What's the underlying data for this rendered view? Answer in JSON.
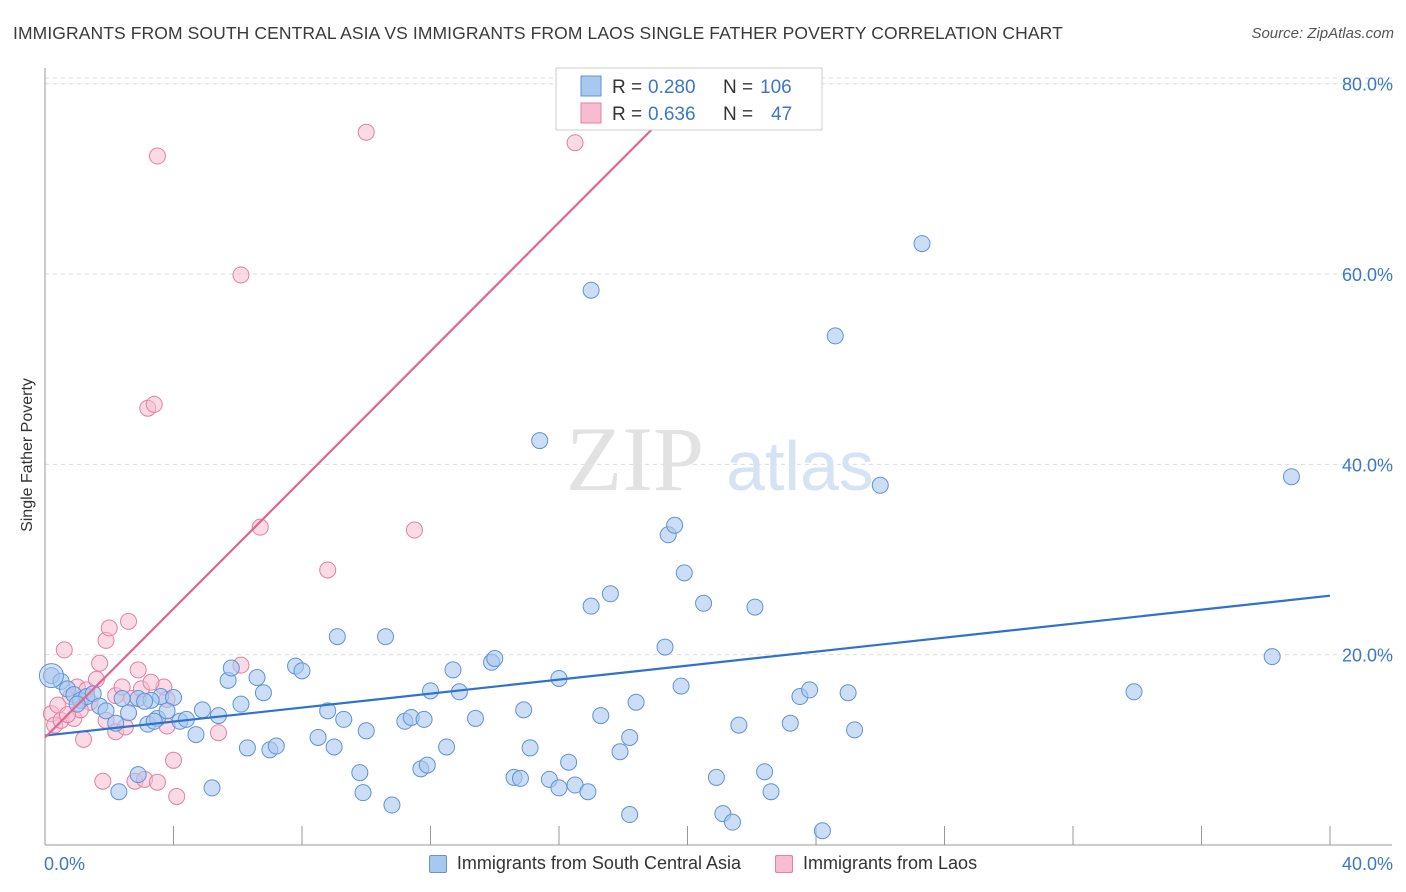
{
  "title": "IMMIGRANTS FROM SOUTH CENTRAL ASIA VS IMMIGRANTS FROM LAOS SINGLE FATHER POVERTY CORRELATION CHART",
  "source": "Source: ZipAtlas.com",
  "watermark": {
    "zip": "ZIP",
    "atlas": "atlas"
  },
  "colors": {
    "blue_fill": "#a9c8ef",
    "blue_stroke": "#5f93d6",
    "blue_line": "#2f72cc",
    "pink_fill": "#f6bdd0",
    "pink_stroke": "#e57fa2",
    "pink_line": "#e0658f",
    "tick_text": "#3b78c7",
    "grid": "#dcdcdc"
  },
  "legend": {
    "rows": [
      {
        "r_label": "R =",
        "r_value": "0.280",
        "n_label": "N =",
        "n_value": "106"
      },
      {
        "r_label": "R =",
        "r_value": "0.636",
        "n_label": "N =",
        "n_value": "47"
      }
    ]
  },
  "chart_data": {
    "type": "scatter",
    "title": "IMMIGRANTS FROM SOUTH CENTRAL ASIA VS IMMIGRANTS FROM LAOS SINGLE FATHER POVERTY CORRELATION CHART",
    "xlabel": "",
    "ylabel": "Single Father Poverty",
    "xlim": [
      0,
      40
    ],
    "ylim": [
      0,
      80
    ],
    "x_tick_labels": [
      "0.0%",
      "40.0%"
    ],
    "y_ticks": [
      20,
      40,
      60,
      80
    ],
    "y_tick_labels": [
      "20.0%",
      "40.0%",
      "60.0%",
      "80.0%"
    ],
    "grid": "horizontal dashed",
    "legend_position": "top-center",
    "series": [
      {
        "name": "Immigrants from South Central Asia",
        "R": 0.28,
        "N": 106,
        "trend": {
          "x": [
            0,
            40
          ],
          "y": [
            11.5,
            26.2
          ]
        },
        "points": [
          [
            0.2,
            17.8
          ],
          [
            0.5,
            17.2
          ],
          [
            0.7,
            16.4
          ],
          [
            0.9,
            15.8
          ],
          [
            1.1,
            15.2
          ],
          [
            1.3,
            15.6
          ],
          [
            1.5,
            15.9
          ],
          [
            1.7,
            14.6
          ],
          [
            1.9,
            14.1
          ],
          [
            2.2,
            12.8
          ],
          [
            2.4,
            15.4
          ],
          [
            2.6,
            13.9
          ],
          [
            2.9,
            15.4
          ],
          [
            3.2,
            12.7
          ],
          [
            3.5,
            13.3
          ],
          [
            3.6,
            15.6
          ],
          [
            3.3,
            15.2
          ],
          [
            4.2,
            13.0
          ],
          [
            4.4,
            13.2
          ],
          [
            4.0,
            15.5
          ],
          [
            4.7,
            11.6
          ],
          [
            5.4,
            13.6
          ],
          [
            5.7,
            17.3
          ],
          [
            5.8,
            18.6
          ],
          [
            6.1,
            14.8
          ],
          [
            6.3,
            10.2
          ],
          [
            7.0,
            10.0
          ],
          [
            7.8,
            18.8
          ],
          [
            8.0,
            18.3
          ],
          [
            8.5,
            11.3
          ],
          [
            9.0,
            10.3
          ],
          [
            9.1,
            21.9
          ],
          [
            9.3,
            13.2
          ],
          [
            9.8,
            7.6
          ],
          [
            9.9,
            5.5
          ],
          [
            10.6,
            21.9
          ],
          [
            10.8,
            4.2
          ],
          [
            11.2,
            13.0
          ],
          [
            11.4,
            13.4
          ],
          [
            11.7,
            8.0
          ],
          [
            11.9,
            8.4
          ],
          [
            12.5,
            10.3
          ],
          [
            12.7,
            18.4
          ],
          [
            12.9,
            16.1
          ],
          [
            13.4,
            13.3
          ],
          [
            13.9,
            19.2
          ],
          [
            14.0,
            19.6
          ],
          [
            14.6,
            7.1
          ],
          [
            14.8,
            7.0
          ],
          [
            14.9,
            14.2
          ],
          [
            15.1,
            10.2
          ],
          [
            15.7,
            6.9
          ],
          [
            16.0,
            6.0
          ],
          [
            16.3,
            8.7
          ],
          [
            16.5,
            6.3
          ],
          [
            16.9,
            5.6
          ],
          [
            17.3,
            13.6
          ],
          [
            17.0,
            25.1
          ],
          [
            17.6,
            26.4
          ],
          [
            17.9,
            9.8
          ],
          [
            18.2,
            3.2
          ],
          [
            18.4,
            15.0
          ],
          [
            18.2,
            11.3
          ],
          [
            19.3,
            20.8
          ],
          [
            19.8,
            16.7
          ],
          [
            19.4,
            32.6
          ],
          [
            19.6,
            33.6
          ],
          [
            19.9,
            28.6
          ],
          [
            20.5,
            25.4
          ],
          [
            20.9,
            7.1
          ],
          [
            21.1,
            3.3
          ],
          [
            21.4,
            2.4
          ],
          [
            21.6,
            12.6
          ],
          [
            22.1,
            25.0
          ],
          [
            22.4,
            7.7
          ],
          [
            22.6,
            5.6
          ],
          [
            23.2,
            12.8
          ],
          [
            23.5,
            15.6
          ],
          [
            23.8,
            16.3
          ],
          [
            24.2,
            1.5
          ],
          [
            24.6,
            53.5
          ],
          [
            25.0,
            16.0
          ],
          [
            25.2,
            12.1
          ],
          [
            26.0,
            37.8
          ],
          [
            27.3,
            63.2
          ],
          [
            17.0,
            58.3
          ],
          [
            15.4,
            42.5
          ],
          [
            2.3,
            5.6
          ],
          [
            2.9,
            7.4
          ],
          [
            3.4,
            13.0
          ],
          [
            5.2,
            6.0
          ],
          [
            7.2,
            10.4
          ],
          [
            8.8,
            14.1
          ],
          [
            12.0,
            16.2
          ],
          [
            3.1,
            15.1
          ],
          [
            1.0,
            14.8
          ],
          [
            4.9,
            14.2
          ],
          [
            6.6,
            17.6
          ],
          [
            3.8,
            14.1
          ],
          [
            11.8,
            13.2
          ],
          [
            38.2,
            19.8
          ],
          [
            38.8,
            38.7
          ],
          [
            33.9,
            16.1
          ],
          [
            16.0,
            17.5
          ],
          [
            6.8,
            16.0
          ],
          [
            10.0,
            12.0
          ]
        ]
      },
      {
        "name": "Immigrants from Laos",
        "R": 0.636,
        "N": 47,
        "trend": {
          "x": [
            0,
            19.6
          ],
          "y": [
            11.3,
            77.6
          ]
        },
        "points": [
          [
            0.2,
            13.8
          ],
          [
            0.3,
            12.6
          ],
          [
            0.4,
            14.7
          ],
          [
            0.5,
            13.1
          ],
          [
            0.6,
            20.5
          ],
          [
            0.8,
            15.6
          ],
          [
            0.9,
            13.3
          ],
          [
            1.0,
            16.6
          ],
          [
            1.2,
            11.1
          ],
          [
            1.3,
            16.3
          ],
          [
            1.4,
            15.0
          ],
          [
            1.6,
            17.4
          ],
          [
            1.7,
            19.1
          ],
          [
            1.8,
            6.7
          ],
          [
            1.9,
            13.1
          ],
          [
            1.9,
            21.5
          ],
          [
            2.0,
            22.8
          ],
          [
            2.2,
            11.9
          ],
          [
            2.2,
            15.7
          ],
          [
            2.4,
            16.6
          ],
          [
            2.6,
            23.5
          ],
          [
            2.7,
            15.4
          ],
          [
            2.9,
            18.4
          ],
          [
            2.8,
            6.7
          ],
          [
            3.0,
            16.4
          ],
          [
            3.1,
            6.9
          ],
          [
            3.2,
            45.9
          ],
          [
            3.4,
            46.3
          ],
          [
            3.5,
            72.4
          ],
          [
            3.5,
            6.6
          ],
          [
            3.7,
            16.6
          ],
          [
            3.8,
            15.3
          ],
          [
            3.8,
            12.5
          ],
          [
            4.0,
            8.9
          ],
          [
            4.1,
            5.1
          ],
          [
            5.4,
            11.8
          ],
          [
            6.1,
            59.9
          ],
          [
            6.1,
            18.9
          ],
          [
            6.7,
            33.4
          ],
          [
            8.8,
            28.9
          ],
          [
            10.0,
            74.9
          ],
          [
            11.5,
            33.1
          ],
          [
            16.5,
            73.8
          ],
          [
            1.1,
            14.2
          ],
          [
            2.5,
            12.4
          ],
          [
            3.3,
            17.1
          ],
          [
            0.7,
            13.7
          ]
        ]
      }
    ]
  },
  "bottom_legend": [
    {
      "label": "Immigrants from South Central Asia"
    },
    {
      "label": "Immigrants from Laos"
    }
  ]
}
